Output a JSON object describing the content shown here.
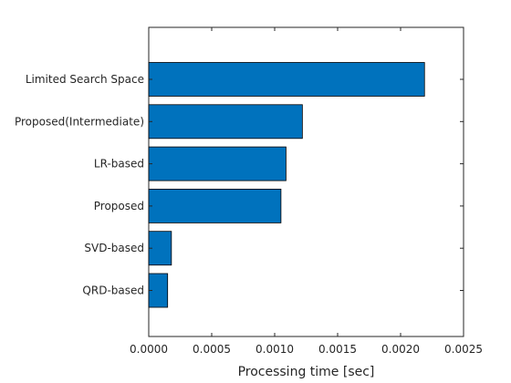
{
  "chart_data": {
    "type": "bar",
    "orientation": "horizontal",
    "title": "",
    "xlabel": "Processing time [sec]",
    "ylabel": "",
    "categories": [
      "Limited Search Space",
      "Proposed(Intermediate)",
      "LR-based",
      "Proposed",
      "SVD-based",
      "QRD-based"
    ],
    "values": [
      0.00219,
      0.00122,
      0.00109,
      0.00105,
      0.00018,
      0.00015
    ],
    "xlim": [
      0,
      0.0025
    ],
    "xticks": [
      "0.0000",
      "0.0005",
      "0.0010",
      "0.0015",
      "0.0020",
      "0.0025"
    ],
    "xtick_values": [
      0,
      0.0005,
      0.001,
      0.0015,
      0.002,
      0.0025
    ],
    "grid": false,
    "legend": "none",
    "colors": {
      "bar_fill": "#0072BD",
      "bar_edge": "#000000",
      "axis": "#262626",
      "background": "#ffffff"
    }
  }
}
